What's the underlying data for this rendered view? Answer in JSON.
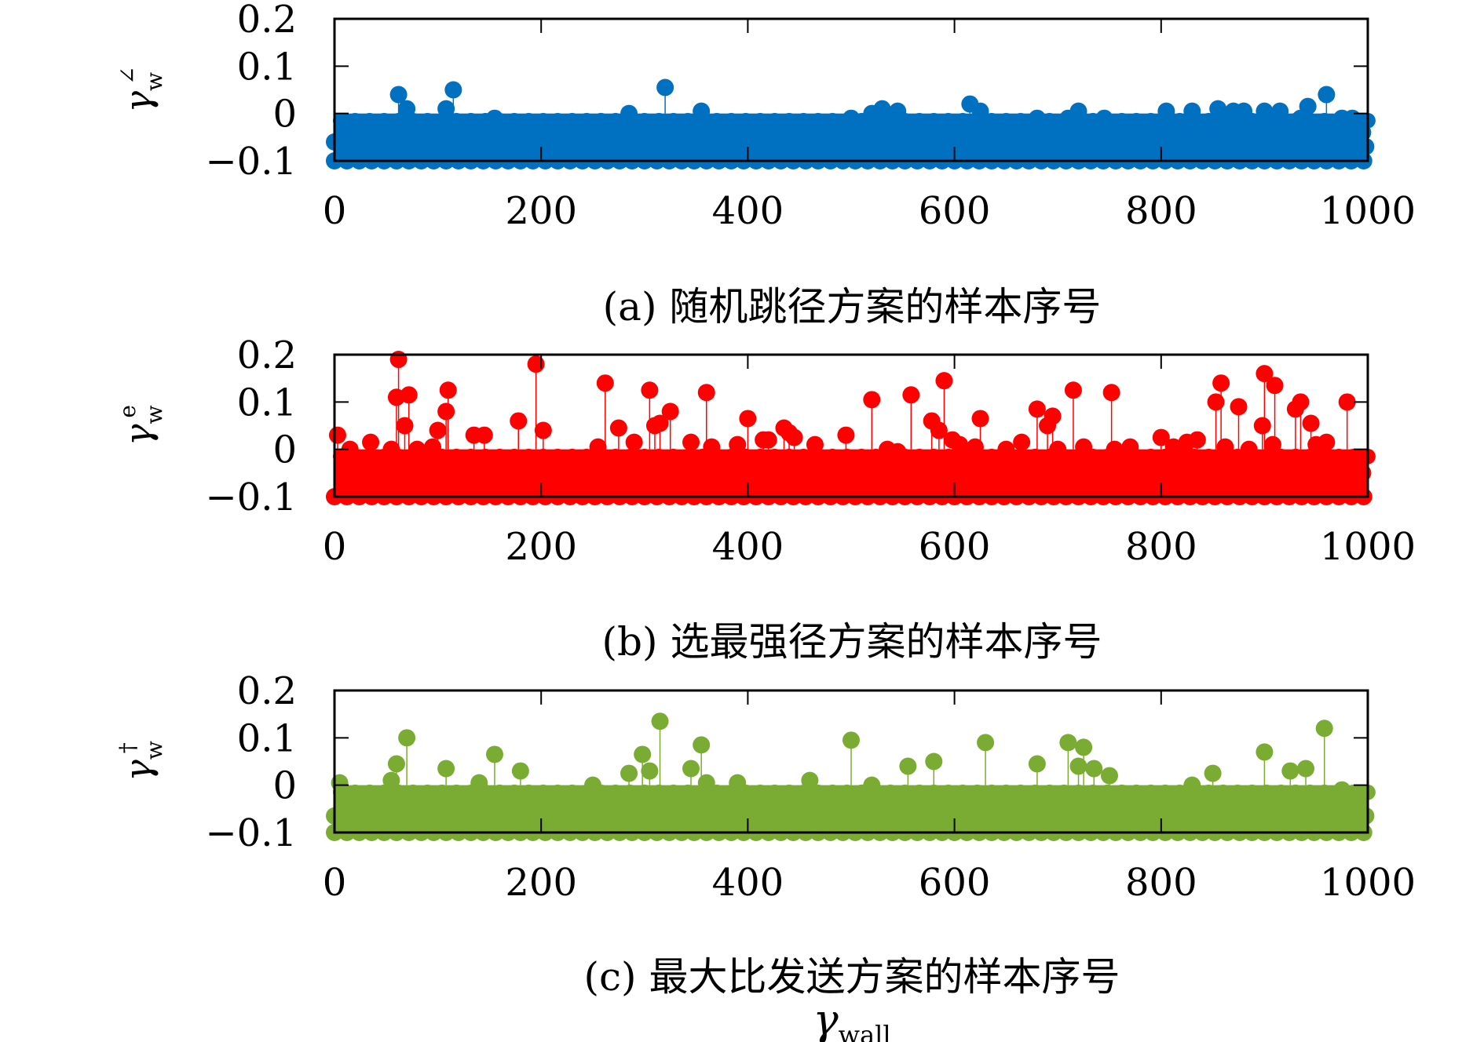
{
  "figure": {
    "footer_label": "γ",
    "footer_sub": "wall"
  },
  "chart_data": [
    {
      "type": "scatter",
      "style": "stem",
      "color": "#0070c0",
      "caption": "(a) 随机跳径方案的样本序号",
      "ylabel": "γ",
      "ylabel_sub": "w",
      "ylabel_sup": "∠",
      "xlim": [
        0,
        1000
      ],
      "ylim": [
        -0.1,
        0.2
      ],
      "baseline": 0,
      "xticks": [
        "0",
        "200",
        "400",
        "600",
        "800",
        "1000"
      ],
      "yticks": [
        "0.2",
        "0.1",
        "0",
        "−0.1"
      ],
      "grid": false,
      "points": [
        [
          0,
          -0.06
        ],
        [
          62,
          0.04
        ],
        [
          70,
          0.01
        ],
        [
          108,
          0.01
        ],
        [
          115,
          0.05
        ],
        [
          155,
          -0.01
        ],
        [
          285,
          0.0
        ],
        [
          320,
          0.055
        ],
        [
          355,
          0.005
        ],
        [
          500,
          -0.01
        ],
        [
          520,
          0.0
        ],
        [
          530,
          0.01
        ],
        [
          545,
          0.005
        ],
        [
          615,
          0.02
        ],
        [
          625,
          0.005
        ],
        [
          680,
          -0.01
        ],
        [
          710,
          -0.01
        ],
        [
          720,
          0.005
        ],
        [
          745,
          -0.01
        ],
        [
          805,
          0.005
        ],
        [
          830,
          0.005
        ],
        [
          855,
          0.01
        ],
        [
          870,
          0.005
        ],
        [
          880,
          0.005
        ],
        [
          900,
          0.005
        ],
        [
          915,
          0.005
        ],
        [
          935,
          -0.01
        ],
        [
          942,
          0.015
        ],
        [
          960,
          0.04
        ],
        [
          975,
          -0.01
        ],
        [
          985,
          -0.01
        ],
        [
          995,
          -0.04
        ],
        [
          998,
          -0.07
        ]
      ]
    },
    {
      "type": "scatter",
      "style": "stem",
      "color": "#ff0000",
      "caption": "(b) 选最强径方案的样本序号",
      "ylabel": "γ",
      "ylabel_sub": "w",
      "ylabel_sup": "e",
      "xlim": [
        0,
        1000
      ],
      "ylim": [
        -0.1,
        0.2
      ],
      "baseline": 0,
      "xticks": [
        "0",
        "200",
        "400",
        "600",
        "800",
        "1000"
      ],
      "yticks": [
        "0.2",
        "0.1",
        "0",
        "−0.1"
      ],
      "grid": false,
      "points": [
        [
          3,
          0.03
        ],
        [
          15,
          0.0
        ],
        [
          35,
          0.015
        ],
        [
          55,
          0.0
        ],
        [
          60,
          0.11
        ],
        [
          62,
          0.19
        ],
        [
          68,
          0.05
        ],
        [
          72,
          0.115
        ],
        [
          80,
          0.0
        ],
        [
          95,
          0.005
        ],
        [
          100,
          0.04
        ],
        [
          108,
          0.08
        ],
        [
          110,
          0.125
        ],
        [
          135,
          0.03
        ],
        [
          145,
          0.03
        ],
        [
          178,
          0.06
        ],
        [
          195,
          0.18
        ],
        [
          202,
          0.04
        ],
        [
          255,
          0.005
        ],
        [
          262,
          0.14
        ],
        [
          275,
          0.045
        ],
        [
          290,
          0.015
        ],
        [
          305,
          0.125
        ],
        [
          310,
          0.05
        ],
        [
          315,
          0.055
        ],
        [
          325,
          0.08
        ],
        [
          345,
          0.015
        ],
        [
          360,
          0.12
        ],
        [
          365,
          0.005
        ],
        [
          390,
          0.01
        ],
        [
          400,
          0.065
        ],
        [
          415,
          0.02
        ],
        [
          420,
          0.02
        ],
        [
          435,
          0.045
        ],
        [
          440,
          0.035
        ],
        [
          445,
          0.025
        ],
        [
          465,
          0.01
        ],
        [
          495,
          0.03
        ],
        [
          520,
          0.105
        ],
        [
          535,
          0.0
        ],
        [
          545,
          -0.005
        ],
        [
          558,
          0.115
        ],
        [
          578,
          0.06
        ],
        [
          585,
          0.04
        ],
        [
          590,
          0.145
        ],
        [
          598,
          0.02
        ],
        [
          605,
          0.01
        ],
        [
          620,
          0.005
        ],
        [
          625,
          0.065
        ],
        [
          650,
          0.0
        ],
        [
          665,
          0.015
        ],
        [
          680,
          0.085
        ],
        [
          690,
          0.05
        ],
        [
          695,
          0.07
        ],
        [
          700,
          0.0
        ],
        [
          715,
          0.125
        ],
        [
          725,
          0.005
        ],
        [
          752,
          0.12
        ],
        [
          755,
          0.0
        ],
        [
          770,
          0.005
        ],
        [
          800,
          0.025
        ],
        [
          812,
          0.005
        ],
        [
          825,
          0.015
        ],
        [
          835,
          0.02
        ],
        [
          853,
          0.1
        ],
        [
          858,
          0.14
        ],
        [
          862,
          0.005
        ],
        [
          875,
          0.09
        ],
        [
          885,
          0.0
        ],
        [
          898,
          0.05
        ],
        [
          900,
          0.16
        ],
        [
          908,
          0.01
        ],
        [
          910,
          0.135
        ],
        [
          930,
          0.085
        ],
        [
          935,
          0.1
        ],
        [
          945,
          0.055
        ],
        [
          950,
          0.01
        ],
        [
          960,
          0.015
        ],
        [
          980,
          0.1
        ],
        [
          995,
          -0.05
        ]
      ]
    },
    {
      "type": "scatter",
      "style": "stem",
      "color": "#7aac34",
      "caption": "(c) 最大比发送方案的样本序号",
      "ylabel": "γ",
      "ylabel_sub": "w",
      "ylabel_sup": "†",
      "xlim": [
        0,
        1000
      ],
      "ylim": [
        -0.1,
        0.2
      ],
      "baseline": 0,
      "xticks": [
        "0",
        "200",
        "400",
        "600",
        "800",
        "1000"
      ],
      "yticks": [
        "0.2",
        "0.1",
        "0",
        "−0.1"
      ],
      "grid": false,
      "points": [
        [
          0,
          -0.065
        ],
        [
          5,
          0.005
        ],
        [
          55,
          0.01
        ],
        [
          60,
          0.045
        ],
        [
          70,
          0.1
        ],
        [
          108,
          0.035
        ],
        [
          140,
          0.005
        ],
        [
          155,
          0.065
        ],
        [
          180,
          0.03
        ],
        [
          250,
          0.0
        ],
        [
          285,
          0.025
        ],
        [
          298,
          0.065
        ],
        [
          305,
          0.03
        ],
        [
          315,
          0.135
        ],
        [
          345,
          0.035
        ],
        [
          355,
          0.085
        ],
        [
          360,
          0.005
        ],
        [
          390,
          0.005
        ],
        [
          460,
          0.01
        ],
        [
          500,
          0.095
        ],
        [
          520,
          0.0
        ],
        [
          555,
          0.04
        ],
        [
          580,
          0.05
        ],
        [
          630,
          0.09
        ],
        [
          680,
          0.045
        ],
        [
          710,
          0.09
        ],
        [
          720,
          0.04
        ],
        [
          725,
          0.08
        ],
        [
          735,
          0.035
        ],
        [
          750,
          0.02
        ],
        [
          830,
          0.0
        ],
        [
          850,
          0.025
        ],
        [
          900,
          0.07
        ],
        [
          925,
          0.03
        ],
        [
          940,
          0.035
        ],
        [
          958,
          0.12
        ],
        [
          975,
          -0.01
        ],
        [
          998,
          -0.065
        ]
      ]
    }
  ]
}
